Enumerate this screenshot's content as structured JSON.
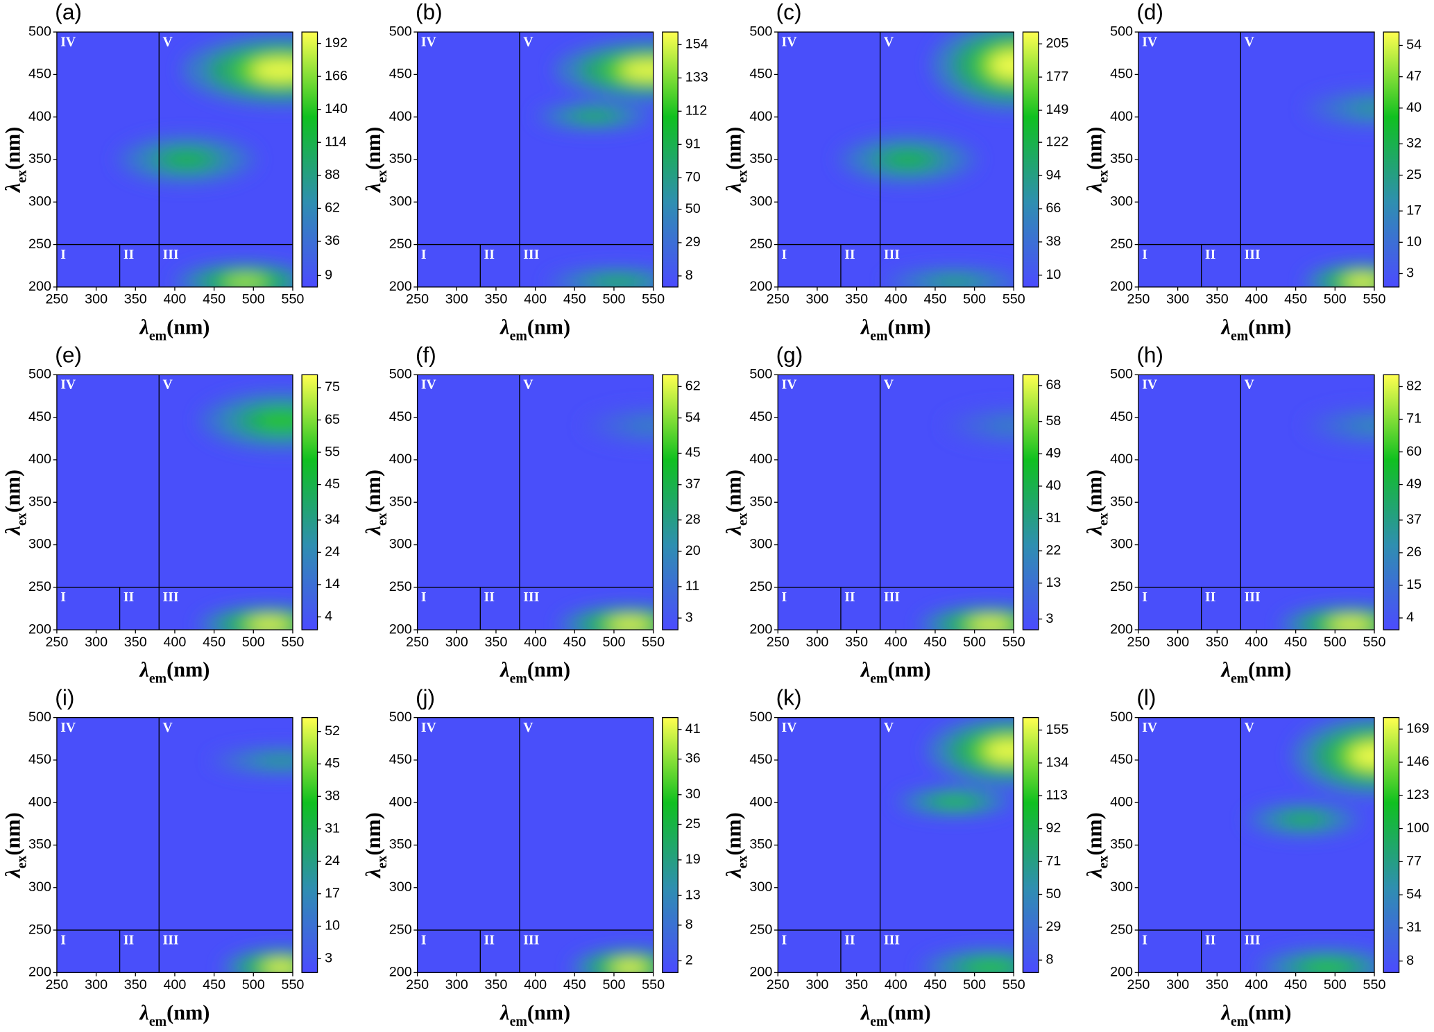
{
  "chart_data": [
    {
      "type": "contour",
      "label": "(a)",
      "x_label": {
        "symbol": "λ",
        "sub": "em",
        "unit": "(nm)"
      },
      "y_label": {
        "symbol": "λ",
        "sub": "ex",
        "unit": "(nm)"
      },
      "xlim": [
        250,
        550
      ],
      "ylim": [
        200,
        500
      ],
      "xticks": [
        250,
        300,
        350,
        400,
        450,
        500,
        550
      ],
      "yticks": [
        200,
        250,
        300,
        350,
        400,
        450,
        500
      ],
      "colormap": [
        "#4b4bff",
        "#2f8fb0",
        "#10c020",
        "#ffff50"
      ],
      "colorbar": {
        "lim": [
          0,
          201
        ],
        "ticks": [
          9,
          36,
          62,
          88,
          114,
          140,
          166,
          192
        ]
      },
      "regions": {
        "labels": [
          "I",
          "II",
          "III",
          "IV",
          "V"
        ],
        "x_bounds": [
          330,
          380
        ],
        "y_bound": 250
      }
    },
    {
      "type": "contour",
      "label": "(b)",
      "x_label": {
        "symbol": "λ",
        "sub": "em",
        "unit": "(nm)"
      },
      "y_label": {
        "symbol": "λ",
        "sub": "ex",
        "unit": "(nm)"
      },
      "xlim": [
        250,
        550
      ],
      "ylim": [
        200,
        500
      ],
      "xticks": [
        250,
        300,
        350,
        400,
        450,
        500,
        550
      ],
      "yticks": [
        200,
        250,
        300,
        350,
        400,
        450,
        500
      ],
      "colormap": [
        "#4b4bff",
        "#2f8fb0",
        "#10c020",
        "#ffff50"
      ],
      "colorbar": {
        "lim": [
          1,
          162
        ],
        "ticks": [
          8,
          29,
          50,
          70,
          91,
          112,
          133,
          154
        ]
      },
      "regions": {
        "labels": [
          "I",
          "II",
          "III",
          "IV",
          "V"
        ],
        "x_bounds": [
          330,
          380
        ],
        "y_bound": 250
      }
    },
    {
      "type": "contour",
      "label": "(c)",
      "x_label": {
        "symbol": "λ",
        "sub": "em",
        "unit": "(nm)"
      },
      "y_label": {
        "symbol": "λ",
        "sub": "ex",
        "unit": "(nm)"
      },
      "xlim": [
        250,
        550
      ],
      "ylim": [
        200,
        500
      ],
      "xticks": [
        250,
        300,
        350,
        400,
        450,
        500,
        550
      ],
      "yticks": [
        200,
        250,
        300,
        350,
        400,
        450,
        500
      ],
      "colormap": [
        "#4b4bff",
        "#2f8fb0",
        "#10c020",
        "#ffff50"
      ],
      "colorbar": {
        "lim": [
          0,
          215
        ],
        "ticks": [
          10,
          38,
          66,
          94,
          122,
          149,
          177,
          205
        ]
      },
      "regions": {
        "labels": [
          "I",
          "II",
          "III",
          "IV",
          "V"
        ],
        "x_bounds": [
          330,
          380
        ],
        "y_bound": 250
      }
    },
    {
      "type": "contour",
      "label": "(d)",
      "x_label": {
        "symbol": "λ",
        "sub": "em",
        "unit": "(nm)"
      },
      "y_label": {
        "symbol": "λ",
        "sub": "ex",
        "unit": "(nm)"
      },
      "xlim": [
        250,
        550
      ],
      "ylim": [
        200,
        500
      ],
      "xticks": [
        250,
        300,
        350,
        400,
        450,
        500,
        550
      ],
      "yticks": [
        200,
        250,
        300,
        350,
        400,
        450,
        500
      ],
      "colormap": [
        "#4b4bff",
        "#2f8fb0",
        "#10c020",
        "#ffff50"
      ],
      "colorbar": {
        "lim": [
          0,
          57
        ],
        "ticks": [
          3,
          10,
          17,
          25,
          32,
          40,
          47,
          54
        ]
      },
      "regions": {
        "labels": [
          "I",
          "II",
          "III",
          "IV",
          "V"
        ],
        "x_bounds": [
          330,
          380
        ],
        "y_bound": 250
      }
    },
    {
      "type": "contour",
      "label": "(e)",
      "x_label": {
        "symbol": "λ",
        "sub": "em",
        "unit": "(nm)"
      },
      "y_label": {
        "symbol": "λ",
        "sub": "ex",
        "unit": "(nm)"
      },
      "xlim": [
        250,
        550
      ],
      "ylim": [
        200,
        500
      ],
      "xticks": [
        250,
        300,
        350,
        400,
        450,
        500,
        550
      ],
      "yticks": [
        200,
        250,
        300,
        350,
        400,
        450,
        500
      ],
      "colormap": [
        "#4b4bff",
        "#2f8fb0",
        "#10c020",
        "#ffff50"
      ],
      "colorbar": {
        "lim": [
          0,
          79
        ],
        "ticks": [
          4,
          14,
          24,
          34,
          45,
          55,
          65,
          75
        ]
      },
      "regions": {
        "labels": [
          "I",
          "II",
          "III",
          "IV",
          "V"
        ],
        "x_bounds": [
          330,
          380
        ],
        "y_bound": 250
      }
    },
    {
      "type": "contour",
      "label": "(f)",
      "x_label": {
        "symbol": "λ",
        "sub": "em",
        "unit": "(nm)"
      },
      "y_label": {
        "symbol": "λ",
        "sub": "ex",
        "unit": "(nm)"
      },
      "xlim": [
        250,
        550
      ],
      "ylim": [
        200,
        500
      ],
      "xticks": [
        250,
        300,
        350,
        400,
        450,
        500,
        550
      ],
      "yticks": [
        200,
        250,
        300,
        350,
        400,
        450,
        500
      ],
      "colormap": [
        "#4b4bff",
        "#2f8fb0",
        "#10c020",
        "#ffff50"
      ],
      "colorbar": {
        "lim": [
          0,
          65
        ],
        "ticks": [
          3,
          11,
          20,
          28,
          37,
          45,
          54,
          62
        ]
      },
      "regions": {
        "labels": [
          "I",
          "II",
          "III",
          "IV",
          "V"
        ],
        "x_bounds": [
          330,
          380
        ],
        "y_bound": 250
      }
    },
    {
      "type": "contour",
      "label": "(g)",
      "x_label": {
        "symbol": "λ",
        "sub": "em",
        "unit": "(nm)"
      },
      "y_label": {
        "symbol": "λ",
        "sub": "ex",
        "unit": "(nm)"
      },
      "xlim": [
        250,
        550
      ],
      "ylim": [
        200,
        500
      ],
      "xticks": [
        250,
        300,
        350,
        400,
        450,
        500,
        550
      ],
      "yticks": [
        200,
        250,
        300,
        350,
        400,
        450,
        500
      ],
      "colormap": [
        "#4b4bff",
        "#2f8fb0",
        "#10c020",
        "#ffff50"
      ],
      "colorbar": {
        "lim": [
          0,
          71
        ],
        "ticks": [
          3,
          13,
          22,
          31,
          40,
          49,
          58,
          68
        ]
      },
      "regions": {
        "labels": [
          "I",
          "II",
          "III",
          "IV",
          "V"
        ],
        "x_bounds": [
          330,
          380
        ],
        "y_bound": 250
      }
    },
    {
      "type": "contour",
      "label": "(h)",
      "x_label": {
        "symbol": "λ",
        "sub": "em",
        "unit": "(nm)"
      },
      "y_label": {
        "symbol": "λ",
        "sub": "ex",
        "unit": "(nm)"
      },
      "xlim": [
        250,
        550
      ],
      "ylim": [
        200,
        500
      ],
      "xticks": [
        250,
        300,
        350,
        400,
        450,
        500,
        550
      ],
      "yticks": [
        200,
        250,
        300,
        350,
        400,
        450,
        500
      ],
      "colormap": [
        "#4b4bff",
        "#2f8fb0",
        "#10c020",
        "#ffff50"
      ],
      "colorbar": {
        "lim": [
          0,
          86
        ],
        "ticks": [
          4,
          15,
          26,
          37,
          49,
          60,
          71,
          82
        ]
      },
      "regions": {
        "labels": [
          "I",
          "II",
          "III",
          "IV",
          "V"
        ],
        "x_bounds": [
          330,
          380
        ],
        "y_bound": 250
      }
    },
    {
      "type": "contour",
      "label": "(i)",
      "x_label": {
        "symbol": "λ",
        "sub": "em",
        "unit": "(nm)"
      },
      "y_label": {
        "symbol": "λ",
        "sub": "ex",
        "unit": "(nm)"
      },
      "xlim": [
        250,
        550
      ],
      "ylim": [
        200,
        500
      ],
      "xticks": [
        250,
        300,
        350,
        400,
        450,
        500,
        550
      ],
      "yticks": [
        200,
        250,
        300,
        350,
        400,
        450,
        500
      ],
      "colormap": [
        "#4b4bff",
        "#2f8fb0",
        "#10c020",
        "#ffff50"
      ],
      "colorbar": {
        "lim": [
          0,
          55
        ],
        "ticks": [
          3,
          10,
          17,
          24,
          31,
          38,
          45,
          52
        ]
      },
      "regions": {
        "labels": [
          "I",
          "II",
          "III",
          "IV",
          "V"
        ],
        "x_bounds": [
          330,
          380
        ],
        "y_bound": 250
      }
    },
    {
      "type": "contour",
      "label": "(j)",
      "x_label": {
        "symbol": "λ",
        "sub": "em",
        "unit": "(nm)"
      },
      "y_label": {
        "symbol": "λ",
        "sub": "ex",
        "unit": "(nm)"
      },
      "xlim": [
        250,
        550
      ],
      "ylim": [
        200,
        500
      ],
      "xticks": [
        250,
        300,
        350,
        400,
        450,
        500,
        550
      ],
      "yticks": [
        200,
        250,
        300,
        350,
        400,
        450,
        500
      ],
      "colormap": [
        "#4b4bff",
        "#2f8fb0",
        "#10c020",
        "#ffff50"
      ],
      "colorbar": {
        "lim": [
          0,
          43
        ],
        "ticks": [
          2,
          8,
          13,
          19,
          25,
          30,
          36,
          41
        ]
      },
      "regions": {
        "labels": [
          "I",
          "II",
          "III",
          "IV",
          "V"
        ],
        "x_bounds": [
          330,
          380
        ],
        "y_bound": 250
      }
    },
    {
      "type": "contour",
      "label": "(k)",
      "x_label": {
        "symbol": "λ",
        "sub": "em",
        "unit": "(nm)"
      },
      "y_label": {
        "symbol": "λ",
        "sub": "ex",
        "unit": "(nm)"
      },
      "xlim": [
        250,
        550
      ],
      "ylim": [
        200,
        500
      ],
      "xticks": [
        250,
        300,
        350,
        400,
        450,
        500,
        550
      ],
      "yticks": [
        200,
        250,
        300,
        350,
        400,
        450,
        500
      ],
      "colormap": [
        "#4b4bff",
        "#2f8fb0",
        "#10c020",
        "#ffff50"
      ],
      "colorbar": {
        "lim": [
          0,
          163
        ],
        "ticks": [
          8,
          29,
          50,
          71,
          92,
          113,
          134,
          155
        ]
      },
      "regions": {
        "labels": [
          "I",
          "II",
          "III",
          "IV",
          "V"
        ],
        "x_bounds": [
          330,
          380
        ],
        "y_bound": 250
      }
    },
    {
      "type": "contour",
      "label": "(l)",
      "x_label": {
        "symbol": "λ",
        "sub": "em",
        "unit": "(nm)"
      },
      "y_label": {
        "symbol": "λ",
        "sub": "ex",
        "unit": "(nm)"
      },
      "xlim": [
        250,
        550
      ],
      "ylim": [
        200,
        500
      ],
      "xticks": [
        250,
        300,
        350,
        400,
        450,
        500,
        550
      ],
      "yticks": [
        200,
        250,
        300,
        350,
        400,
        450,
        500
      ],
      "colormap": [
        "#4b4bff",
        "#2f8fb0",
        "#10c020",
        "#ffff50"
      ],
      "colorbar": {
        "lim": [
          0,
          177
        ],
        "ticks": [
          8,
          31,
          54,
          77,
          100,
          123,
          146,
          169
        ]
      },
      "regions": {
        "labels": [
          "I",
          "II",
          "III",
          "IV",
          "V"
        ],
        "x_bounds": [
          330,
          380
        ],
        "y_bound": 250
      }
    }
  ]
}
